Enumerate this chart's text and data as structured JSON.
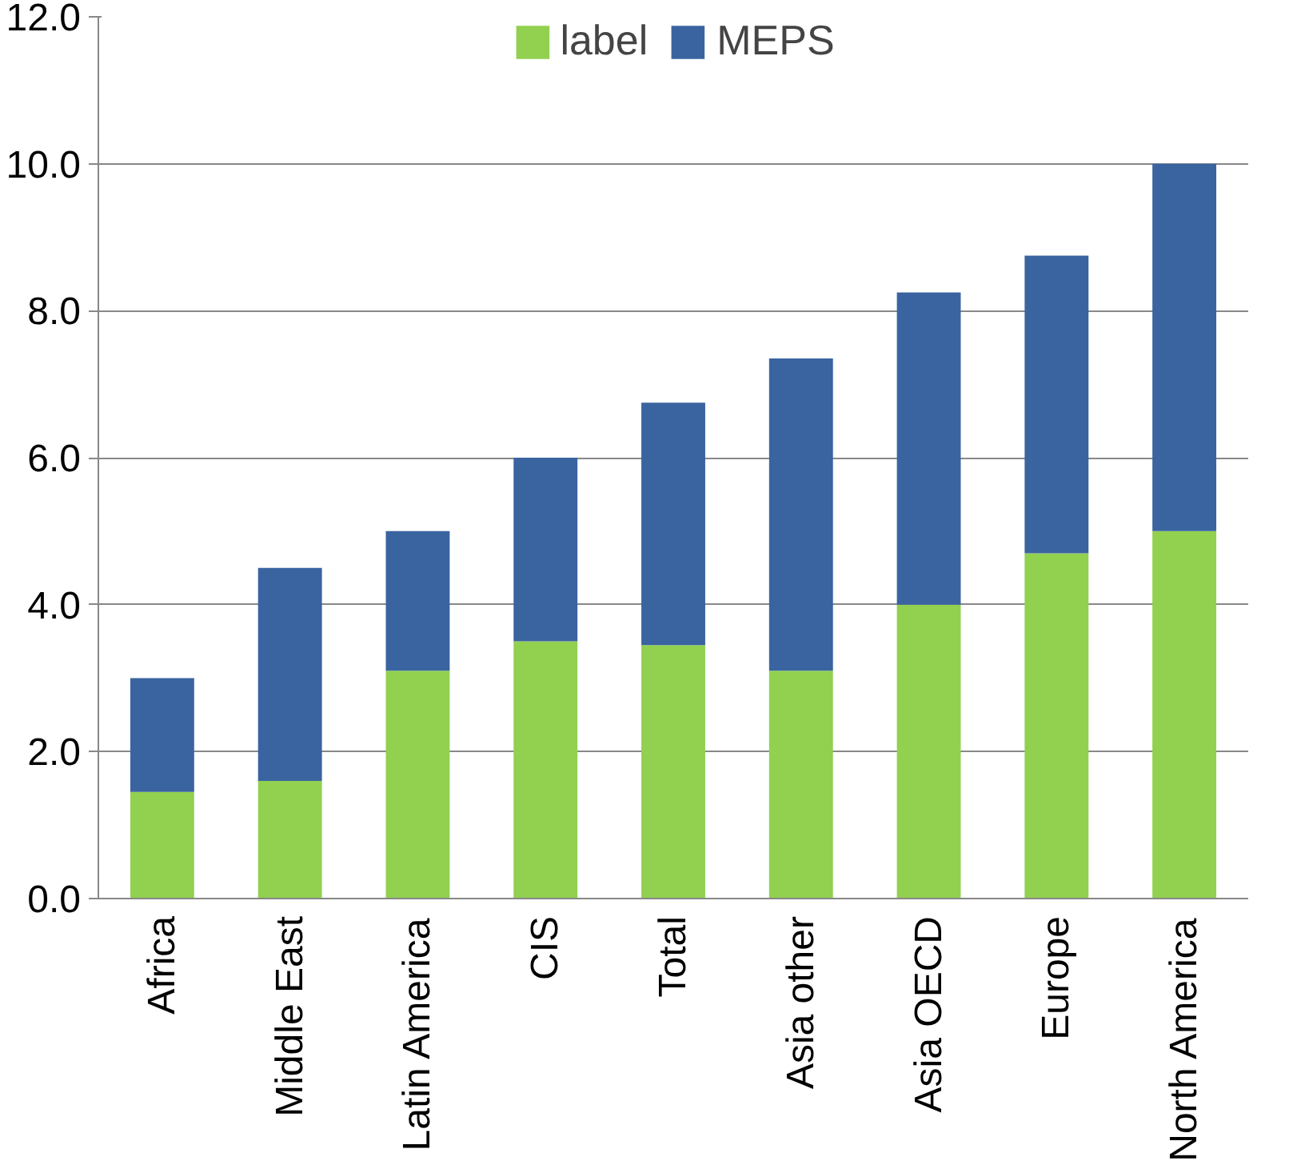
{
  "chart_data": {
    "type": "bar",
    "stacked": true,
    "categories": [
      "Africa",
      "Middle East",
      "Latin America",
      "CIS",
      "Total",
      "Asia other",
      "Asia OECD",
      "Europe",
      "North America"
    ],
    "series": [
      {
        "name": "label",
        "color": "#92d050",
        "values": [
          1.45,
          1.6,
          3.1,
          3.5,
          3.45,
          3.1,
          4.0,
          4.7,
          5.0
        ]
      },
      {
        "name": "MEPS",
        "color": "#3a64a0",
        "values": [
          1.55,
          2.9,
          1.9,
          2.5,
          3.3,
          4.25,
          4.25,
          4.05,
          5.0
        ]
      }
    ],
    "ylim": [
      0,
      12
    ],
    "yticks": [
      {
        "value": 0,
        "label": "0.0"
      },
      {
        "value": 2,
        "label": "2.0"
      },
      {
        "value": 4,
        "label": "4.0"
      },
      {
        "value": 6,
        "label": "6.0"
      },
      {
        "value": 8,
        "label": "8.0"
      },
      {
        "value": 10,
        "label": "10.0"
      },
      {
        "value": 12,
        "label": "12.0"
      }
    ],
    "grid": "y",
    "legend": "top"
  }
}
